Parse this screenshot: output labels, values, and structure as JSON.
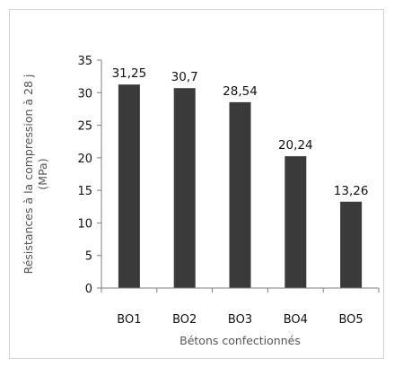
{
  "chart_data": {
    "type": "bar",
    "categories": [
      "BO1",
      "BO2",
      "BO3",
      "BO4",
      "BO5"
    ],
    "values": [
      31.25,
      30.7,
      28.54,
      20.24,
      13.26
    ],
    "data_labels": [
      "31,25",
      "30,7",
      "28,54",
      "20,24",
      "13,26"
    ],
    "title": "",
    "xlabel": "Bétons confectionnés",
    "ylabel_line1": "Résistances à la compression à 28 j",
    "ylabel_line2": "(MPa)",
    "ylim": [
      0,
      35
    ],
    "yticks": [
      0,
      5,
      10,
      15,
      20,
      25,
      30,
      35
    ],
    "grid": false,
    "legend": "none",
    "colors": {
      "bar": "#3a3a3a",
      "axis": "#7f7f7f",
      "text": "#111111",
      "axis_title": "#555555"
    }
  }
}
